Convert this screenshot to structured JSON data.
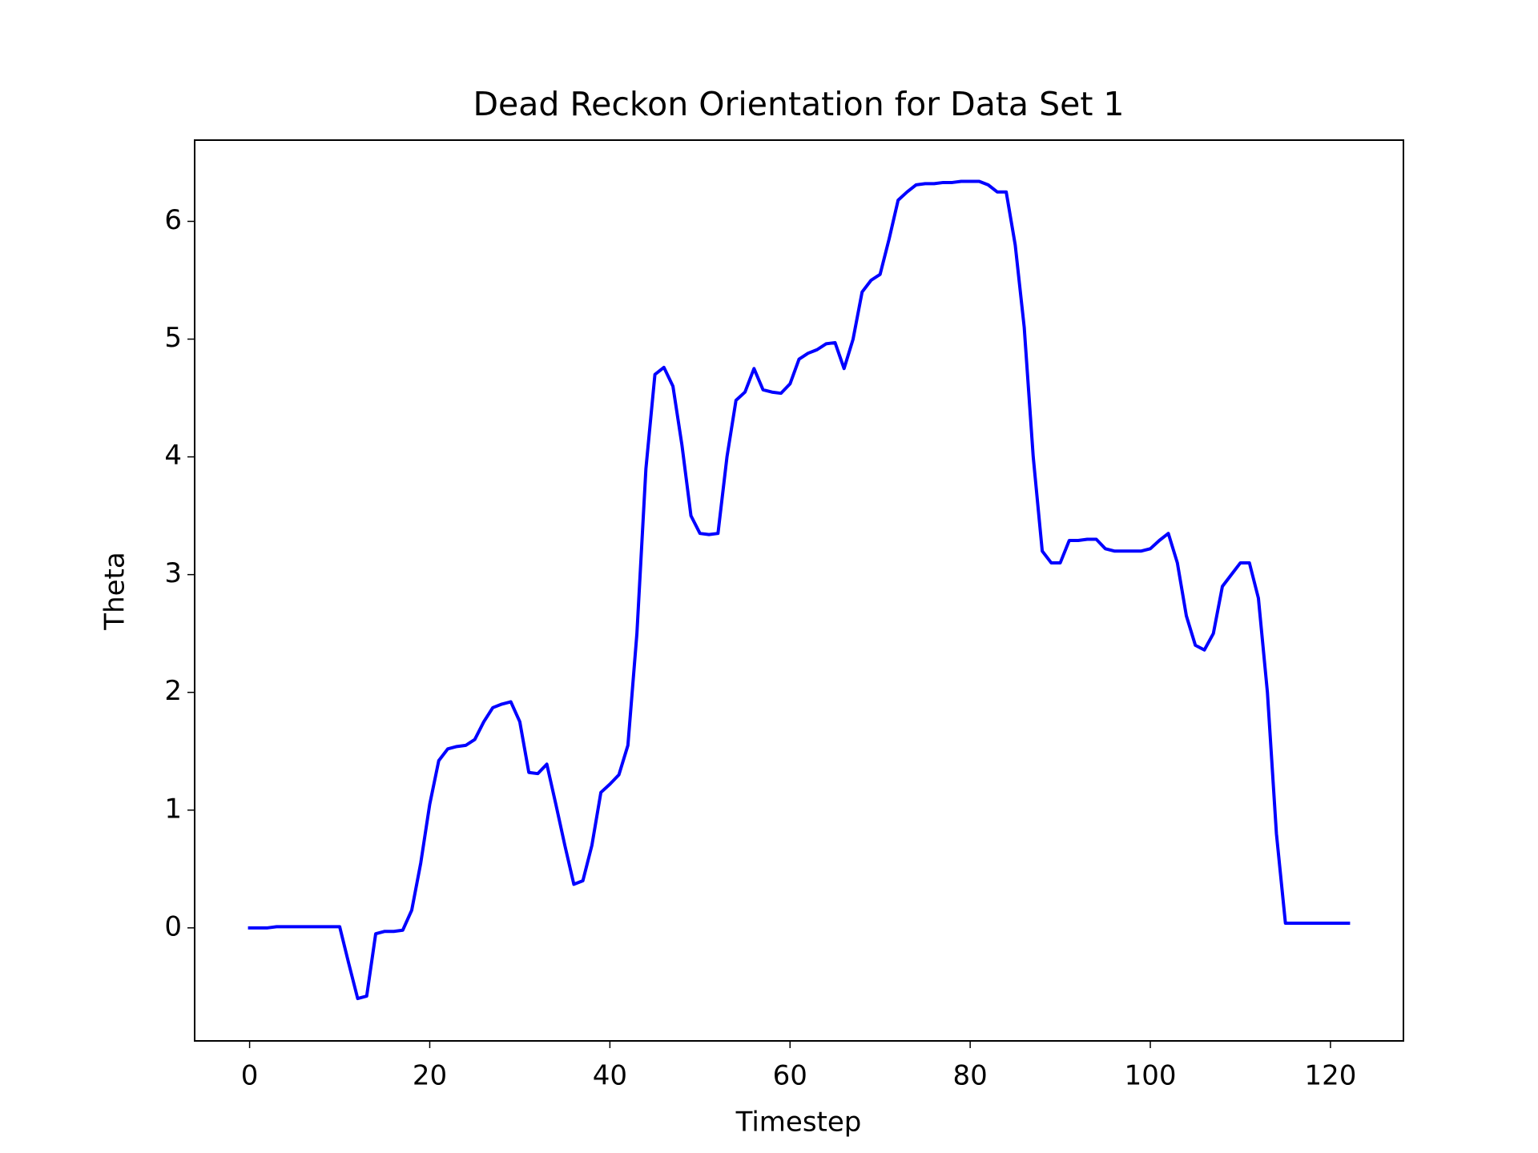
{
  "chart_data": {
    "type": "line",
    "title": "Dead Reckon Orientation for Data Set 1",
    "x_label": "Timestep",
    "y_label": "Theta",
    "x": [
      0,
      1,
      2,
      3,
      4,
      5,
      6,
      7,
      8,
      9,
      10,
      11,
      12,
      13,
      14,
      15,
      16,
      17,
      18,
      19,
      20,
      21,
      22,
      23,
      24,
      25,
      26,
      27,
      28,
      29,
      30,
      31,
      32,
      33,
      34,
      35,
      36,
      37,
      38,
      39,
      40,
      41,
      42,
      43,
      44,
      45,
      46,
      47,
      48,
      49,
      50,
      51,
      52,
      53,
      54,
      55,
      56,
      57,
      58,
      59,
      60,
      61,
      62,
      63,
      64,
      65,
      66,
      67,
      68,
      69,
      70,
      71,
      72,
      73,
      74,
      75,
      76,
      77,
      78,
      79,
      80,
      81,
      82,
      83,
      84,
      85,
      86,
      87,
      88,
      89,
      90,
      91,
      92,
      93,
      94,
      95,
      96,
      97,
      98,
      99,
      100,
      101,
      102,
      103,
      104,
      105,
      106,
      107,
      108,
      109,
      110,
      111,
      112,
      113,
      114,
      115,
      116,
      117,
      118,
      119,
      120,
      121,
      122
    ],
    "series": [
      {
        "name": "Theta",
        "color": "#0000ff",
        "values": [
          0.0,
          0.0,
          0.0,
          0.01,
          0.01,
          0.01,
          0.01,
          0.01,
          0.01,
          0.01,
          0.01,
          -0.3,
          -0.6,
          -0.58,
          -0.05,
          -0.03,
          -0.03,
          -0.02,
          0.15,
          0.55,
          1.05,
          1.42,
          1.52,
          1.54,
          1.55,
          1.6,
          1.75,
          1.87,
          1.9,
          1.92,
          1.75,
          1.32,
          1.31,
          1.39,
          1.05,
          0.7,
          0.37,
          0.4,
          0.7,
          1.15,
          1.22,
          1.3,
          1.55,
          2.5,
          3.9,
          4.7,
          4.76,
          4.6,
          4.1,
          3.5,
          3.35,
          3.34,
          3.35,
          4.0,
          4.48,
          4.55,
          4.75,
          4.57,
          4.55,
          4.54,
          4.62,
          4.83,
          4.88,
          4.91,
          4.96,
          4.97,
          4.75,
          5.0,
          5.4,
          5.5,
          5.55,
          5.85,
          6.18,
          6.25,
          6.31,
          6.32,
          6.32,
          6.33,
          6.33,
          6.34,
          6.34,
          6.34,
          6.31,
          6.25,
          6.25,
          5.8,
          5.1,
          4.0,
          3.2,
          3.1,
          3.1,
          3.29,
          3.29,
          3.3,
          3.3,
          3.22,
          3.2,
          3.2,
          3.2,
          3.2,
          3.22,
          3.29,
          3.35,
          3.1,
          2.65,
          2.4,
          2.36,
          2.5,
          2.9,
          3.0,
          3.1,
          3.1,
          2.8,
          2.0,
          0.8,
          0.04,
          0.04,
          0.04,
          0.04,
          0.04,
          0.04,
          0.04,
          0.04
        ]
      }
    ],
    "xlim": [
      -6.1,
      128.1
    ],
    "ylim": [
      -0.96,
      6.69
    ],
    "xticks": [
      0,
      20,
      40,
      60,
      80,
      100,
      120
    ],
    "yticks": [
      0,
      1,
      2,
      3,
      4,
      5,
      6
    ]
  }
}
